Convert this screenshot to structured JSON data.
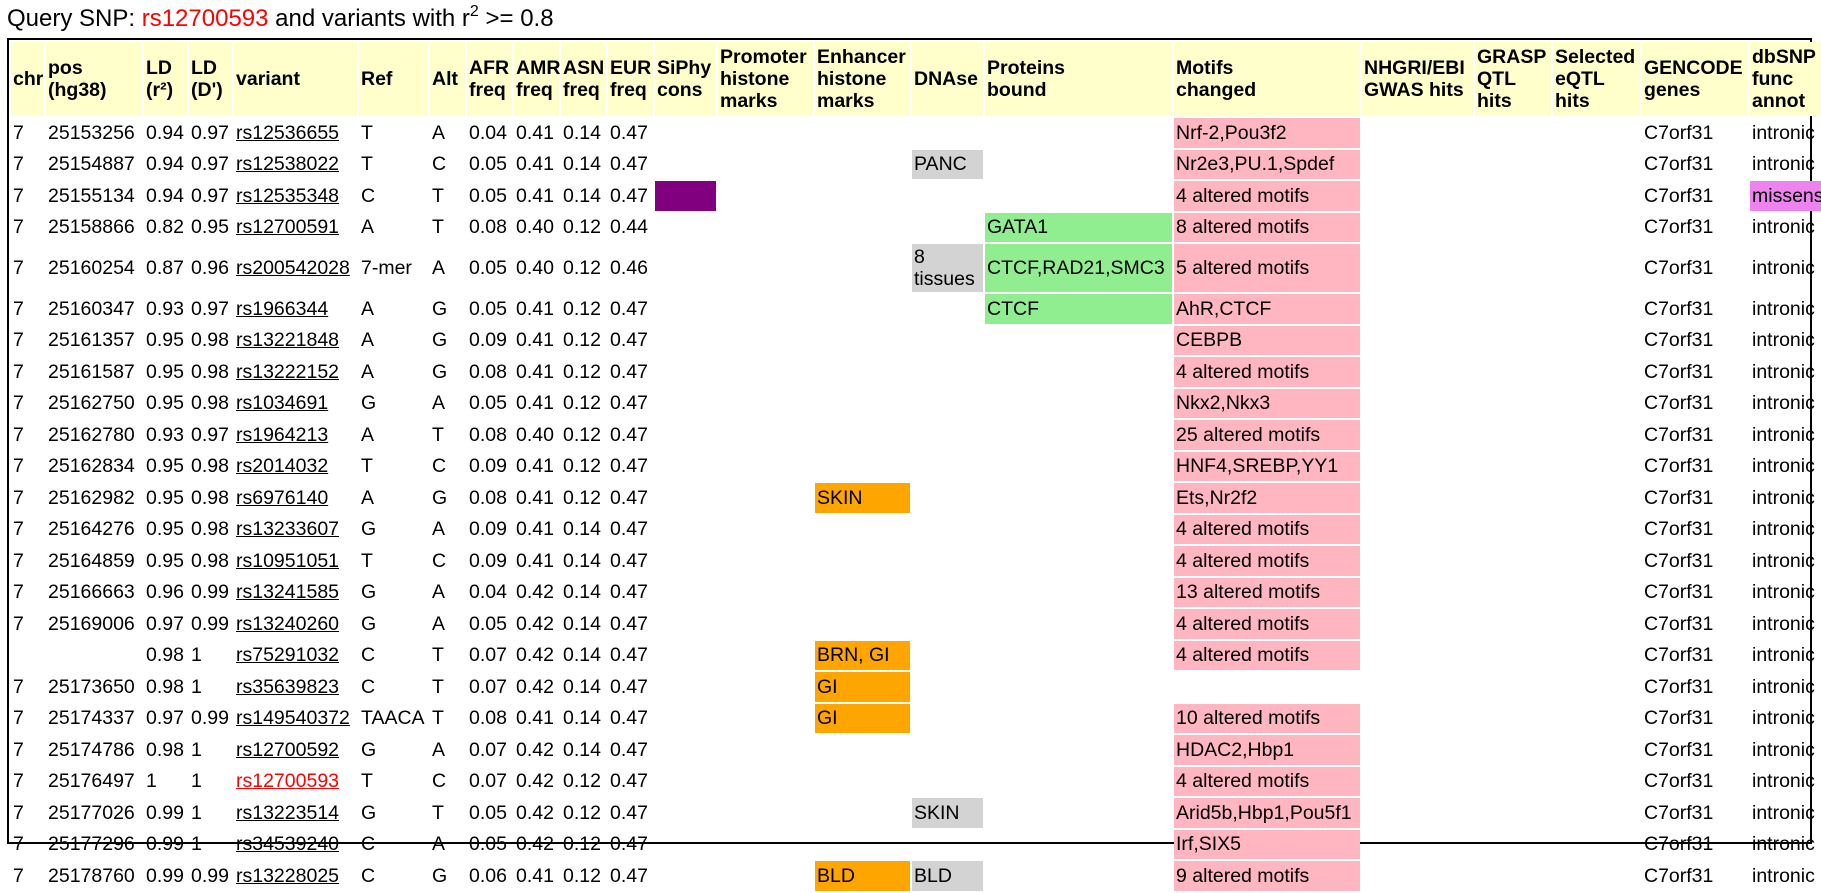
{
  "query": {
    "prefix": "Query SNP: ",
    "snp": "rs12700593",
    "middle": " and variants with r",
    "sup": "2",
    "suffix": " >= 0.8"
  },
  "colors": {
    "header_bg": "#ffffcc",
    "motif_pink": "#ffb6c1",
    "protein_green": "#90ee90",
    "enhancer_orange": "#ffa500",
    "dnase_grey": "#d3d3d3",
    "siphy_purple": "#800080",
    "missense_violet": "#ee82ee",
    "query_red": "#ff0000"
  },
  "columns": [
    "chr",
    "pos\n(hg38)",
    "LD\n(r²)",
    "LD\n(D')",
    "variant",
    "Ref",
    "Alt",
    "AFR\nfreq",
    "AMR\nfreq",
    "ASN\nfreq",
    "EUR\nfreq",
    "SiPhy\ncons",
    "Promoter\nhistone\nmarks",
    "Enhancer\nhistone\nmarks",
    "DNAse",
    "Proteins\nbound",
    "Motifs\nchanged",
    "NHGRI/EBI\nGWAS hits",
    "GRASP\nQTL\nhits",
    "Selected\neQTL\nhits",
    "GENCODE\ngenes",
    "dbSNP\nfunc\nannot"
  ],
  "rows": [
    {
      "chr": "7",
      "pos": "25153256",
      "r2": "0.94",
      "dp": "0.97",
      "variant": "rs12536655",
      "ref": "T",
      "alt": "A",
      "afr": "0.04",
      "amr": "0.41",
      "asn": "0.14",
      "eur": "0.47",
      "siphy": false,
      "promoter": "",
      "enhancer": "",
      "dnase": "",
      "proteins": "",
      "motifs": "Nrf-2,Pou3f2",
      "gwas": "",
      "grasp": "",
      "eqtl": "",
      "gencode": "C7orf31",
      "func": "intronic"
    },
    {
      "chr": "7",
      "pos": "25154887",
      "r2": "0.94",
      "dp": "0.97",
      "variant": "rs12538022",
      "ref": "T",
      "alt": "C",
      "afr": "0.05",
      "amr": "0.41",
      "asn": "0.14",
      "eur": "0.47",
      "siphy": false,
      "promoter": "",
      "enhancer": "",
      "dnase": "PANC",
      "proteins": "",
      "motifs": "Nr2e3,PU.1,Spdef",
      "gwas": "",
      "grasp": "",
      "eqtl": "",
      "gencode": "C7orf31",
      "func": "intronic"
    },
    {
      "chr": "7",
      "pos": "25155134",
      "r2": "0.94",
      "dp": "0.97",
      "variant": "rs12535348",
      "ref": "C",
      "alt": "T",
      "afr": "0.05",
      "amr": "0.41",
      "asn": "0.14",
      "eur": "0.47",
      "siphy": true,
      "promoter": "",
      "enhancer": "",
      "dnase": "",
      "proteins": "",
      "motifs": "4 altered motifs",
      "gwas": "",
      "grasp": "",
      "eqtl": "",
      "gencode": "C7orf31",
      "func": "missense"
    },
    {
      "chr": "7",
      "pos": "25158866",
      "r2": "0.82",
      "dp": "0.95",
      "variant": "rs12700591",
      "ref": "A",
      "alt": "T",
      "afr": "0.08",
      "amr": "0.40",
      "asn": "0.12",
      "eur": "0.44",
      "siphy": false,
      "promoter": "",
      "enhancer": "",
      "dnase": "",
      "proteins": "GATA1",
      "motifs": "8 altered motifs",
      "gwas": "",
      "grasp": "",
      "eqtl": "",
      "gencode": "C7orf31",
      "func": "intronic"
    },
    {
      "chr": "7",
      "pos": "25160254",
      "r2": "0.87",
      "dp": "0.96",
      "variant": "rs200542028",
      "ref": "7-mer",
      "alt": "A",
      "afr": "0.05",
      "amr": "0.40",
      "asn": "0.12",
      "eur": "0.46",
      "siphy": false,
      "promoter": "",
      "enhancer": "",
      "dnase": "8\ntissues",
      "proteins": "CTCF,RAD21,SMC3",
      "motifs": "5 altered motifs",
      "gwas": "",
      "grasp": "",
      "eqtl": "",
      "gencode": "C7orf31",
      "func": "intronic"
    },
    {
      "chr": "7",
      "pos": "25160347",
      "r2": "0.93",
      "dp": "0.97",
      "variant": "rs1966344",
      "ref": "A",
      "alt": "G",
      "afr": "0.05",
      "amr": "0.41",
      "asn": "0.12",
      "eur": "0.47",
      "siphy": false,
      "promoter": "",
      "enhancer": "",
      "dnase": "",
      "proteins": "CTCF",
      "motifs": "AhR,CTCF",
      "gwas": "",
      "grasp": "",
      "eqtl": "",
      "gencode": "C7orf31",
      "func": "intronic"
    },
    {
      "chr": "7",
      "pos": "25161357",
      "r2": "0.95",
      "dp": "0.98",
      "variant": "rs13221848",
      "ref": "A",
      "alt": "G",
      "afr": "0.09",
      "amr": "0.41",
      "asn": "0.12",
      "eur": "0.47",
      "siphy": false,
      "promoter": "",
      "enhancer": "",
      "dnase": "",
      "proteins": "",
      "motifs": "CEBPB",
      "gwas": "",
      "grasp": "",
      "eqtl": "",
      "gencode": "C7orf31",
      "func": "intronic"
    },
    {
      "chr": "7",
      "pos": "25161587",
      "r2": "0.95",
      "dp": "0.98",
      "variant": "rs13222152",
      "ref": "A",
      "alt": "G",
      "afr": "0.08",
      "amr": "0.41",
      "asn": "0.12",
      "eur": "0.47",
      "siphy": false,
      "promoter": "",
      "enhancer": "",
      "dnase": "",
      "proteins": "",
      "motifs": "4 altered motifs",
      "gwas": "",
      "grasp": "",
      "eqtl": "",
      "gencode": "C7orf31",
      "func": "intronic"
    },
    {
      "chr": "7",
      "pos": "25162750",
      "r2": "0.95",
      "dp": "0.98",
      "variant": "rs1034691",
      "ref": "G",
      "alt": "A",
      "afr": "0.05",
      "amr": "0.41",
      "asn": "0.12",
      "eur": "0.47",
      "siphy": false,
      "promoter": "",
      "enhancer": "",
      "dnase": "",
      "proteins": "",
      "motifs": "Nkx2,Nkx3",
      "gwas": "",
      "grasp": "",
      "eqtl": "",
      "gencode": "C7orf31",
      "func": "intronic"
    },
    {
      "chr": "7",
      "pos": "25162780",
      "r2": "0.93",
      "dp": "0.97",
      "variant": "rs1964213",
      "ref": "A",
      "alt": "T",
      "afr": "0.08",
      "amr": "0.40",
      "asn": "0.12",
      "eur": "0.47",
      "siphy": false,
      "promoter": "",
      "enhancer": "",
      "dnase": "",
      "proteins": "",
      "motifs": "25 altered motifs",
      "gwas": "",
      "grasp": "",
      "eqtl": "",
      "gencode": "C7orf31",
      "func": "intronic"
    },
    {
      "chr": "7",
      "pos": "25162834",
      "r2": "0.95",
      "dp": "0.98",
      "variant": "rs2014032",
      "ref": "T",
      "alt": "C",
      "afr": "0.09",
      "amr": "0.41",
      "asn": "0.12",
      "eur": "0.47",
      "siphy": false,
      "promoter": "",
      "enhancer": "",
      "dnase": "",
      "proteins": "",
      "motifs": "HNF4,SREBP,YY1",
      "gwas": "",
      "grasp": "",
      "eqtl": "",
      "gencode": "C7orf31",
      "func": "intronic"
    },
    {
      "chr": "7",
      "pos": "25162982",
      "r2": "0.95",
      "dp": "0.98",
      "variant": "rs6976140",
      "ref": "A",
      "alt": "G",
      "afr": "0.08",
      "amr": "0.41",
      "asn": "0.12",
      "eur": "0.47",
      "siphy": false,
      "promoter": "",
      "enhancer": "SKIN",
      "dnase": "",
      "proteins": "",
      "motifs": "Ets,Nr2f2",
      "gwas": "",
      "grasp": "",
      "eqtl": "",
      "gencode": "C7orf31",
      "func": "intronic"
    },
    {
      "chr": "7",
      "pos": "25164276",
      "r2": "0.95",
      "dp": "0.98",
      "variant": "rs13233607",
      "ref": "G",
      "alt": "A",
      "afr": "0.09",
      "amr": "0.41",
      "asn": "0.14",
      "eur": "0.47",
      "siphy": false,
      "promoter": "",
      "enhancer": "",
      "dnase": "",
      "proteins": "",
      "motifs": "4 altered motifs",
      "gwas": "",
      "grasp": "",
      "eqtl": "",
      "gencode": "C7orf31",
      "func": "intronic"
    },
    {
      "chr": "7",
      "pos": "25164859",
      "r2": "0.95",
      "dp": "0.98",
      "variant": "rs10951051",
      "ref": "T",
      "alt": "C",
      "afr": "0.09",
      "amr": "0.41",
      "asn": "0.14",
      "eur": "0.47",
      "siphy": false,
      "promoter": "",
      "enhancer": "",
      "dnase": "",
      "proteins": "",
      "motifs": "4 altered motifs",
      "gwas": "",
      "grasp": "",
      "eqtl": "",
      "gencode": "C7orf31",
      "func": "intronic"
    },
    {
      "chr": "7",
      "pos": "25166663",
      "r2": "0.96",
      "dp": "0.99",
      "variant": "rs13241585",
      "ref": "G",
      "alt": "A",
      "afr": "0.04",
      "amr": "0.42",
      "asn": "0.14",
      "eur": "0.47",
      "siphy": false,
      "promoter": "",
      "enhancer": "",
      "dnase": "",
      "proteins": "",
      "motifs": "13 altered motifs",
      "gwas": "",
      "grasp": "",
      "eqtl": "",
      "gencode": "C7orf31",
      "func": "intronic"
    },
    {
      "chr": "7",
      "pos": "25169006",
      "r2": "0.97",
      "dp": "0.99",
      "variant": "rs13240260",
      "ref": "G",
      "alt": "A",
      "afr": "0.05",
      "amr": "0.42",
      "asn": "0.14",
      "eur": "0.47",
      "siphy": false,
      "promoter": "",
      "enhancer": "",
      "dnase": "",
      "proteins": "",
      "motifs": "4 altered motifs",
      "gwas": "",
      "grasp": "",
      "eqtl": "",
      "gencode": "C7orf31",
      "func": "intronic"
    },
    {
      "chr": "",
      "pos": "",
      "r2": "0.98",
      "dp": "1",
      "variant": "rs75291032",
      "ref": "C",
      "alt": "T",
      "afr": "0.07",
      "amr": "0.42",
      "asn": "0.14",
      "eur": "0.47",
      "siphy": false,
      "promoter": "",
      "enhancer": "BRN, GI",
      "dnase": "",
      "proteins": "",
      "motifs": "4 altered motifs",
      "gwas": "",
      "grasp": "",
      "eqtl": "",
      "gencode": "C7orf31",
      "func": "intronic"
    },
    {
      "chr": "7",
      "pos": "25173650",
      "r2": "0.98",
      "dp": "1",
      "variant": "rs35639823",
      "ref": "C",
      "alt": "T",
      "afr": "0.07",
      "amr": "0.42",
      "asn": "0.14",
      "eur": "0.47",
      "siphy": false,
      "promoter": "",
      "enhancer": "GI",
      "dnase": "",
      "proteins": "",
      "motifs": "",
      "gwas": "",
      "grasp": "",
      "eqtl": "",
      "gencode": "C7orf31",
      "func": "intronic"
    },
    {
      "chr": "7",
      "pos": "25174337",
      "r2": "0.97",
      "dp": "0.99",
      "variant": "rs149540372",
      "ref": "TAACA",
      "alt": "T",
      "afr": "0.08",
      "amr": "0.41",
      "asn": "0.14",
      "eur": "0.47",
      "siphy": false,
      "promoter": "",
      "enhancer": "GI",
      "dnase": "",
      "proteins": "",
      "motifs": "10 altered motifs",
      "gwas": "",
      "grasp": "",
      "eqtl": "",
      "gencode": "C7orf31",
      "func": "intronic"
    },
    {
      "chr": "7",
      "pos": "25174786",
      "r2": "0.98",
      "dp": "1",
      "variant": "rs12700592",
      "ref": "G",
      "alt": "A",
      "afr": "0.07",
      "amr": "0.42",
      "asn": "0.14",
      "eur": "0.47",
      "siphy": false,
      "promoter": "",
      "enhancer": "",
      "dnase": "",
      "proteins": "",
      "motifs": "HDAC2,Hbp1",
      "gwas": "",
      "grasp": "",
      "eqtl": "",
      "gencode": "C7orf31",
      "func": "intronic"
    },
    {
      "chr": "7",
      "pos": "25176497",
      "r2": "1",
      "dp": "1",
      "variant": "rs12700593",
      "is_query": true,
      "ref": "T",
      "alt": "C",
      "afr": "0.07",
      "amr": "0.42",
      "asn": "0.12",
      "eur": "0.47",
      "siphy": false,
      "promoter": "",
      "enhancer": "",
      "dnase": "",
      "proteins": "",
      "motifs": "4 altered motifs",
      "gwas": "",
      "grasp": "",
      "eqtl": "",
      "gencode": "C7orf31",
      "func": "intronic"
    },
    {
      "chr": "7",
      "pos": "25177026",
      "r2": "0.99",
      "dp": "1",
      "variant": "rs13223514",
      "ref": "G",
      "alt": "T",
      "afr": "0.05",
      "amr": "0.42",
      "asn": "0.12",
      "eur": "0.47",
      "siphy": false,
      "promoter": "",
      "enhancer": "",
      "dnase": "SKIN",
      "proteins": "",
      "motifs": "Arid5b,Hbp1,Pou5f1",
      "gwas": "",
      "grasp": "",
      "eqtl": "",
      "gencode": "C7orf31",
      "func": "intronic"
    },
    {
      "chr": "7",
      "pos": "25177296",
      "r2": "0.99",
      "dp": "1",
      "variant": "rs34539240",
      "ref": "C",
      "alt": "A",
      "afr": "0.05",
      "amr": "0.42",
      "asn": "0.12",
      "eur": "0.47",
      "siphy": false,
      "promoter": "",
      "enhancer": "",
      "dnase": "",
      "proteins": "",
      "motifs": "Irf,SIX5",
      "gwas": "",
      "grasp": "",
      "eqtl": "",
      "gencode": "C7orf31",
      "func": "intronic"
    },
    {
      "chr": "7",
      "pos": "25178760",
      "r2": "0.99",
      "dp": "0.99",
      "variant": "rs13228025",
      "ref": "C",
      "alt": "G",
      "afr": "0.06",
      "amr": "0.41",
      "asn": "0.12",
      "eur": "0.47",
      "siphy": false,
      "promoter": "",
      "enhancer": "BLD",
      "dnase": "BLD",
      "proteins": "",
      "motifs": "9 altered motifs",
      "gwas": "",
      "grasp": "",
      "eqtl": "",
      "gencode": "C7orf31",
      "func": "intronic"
    }
  ]
}
